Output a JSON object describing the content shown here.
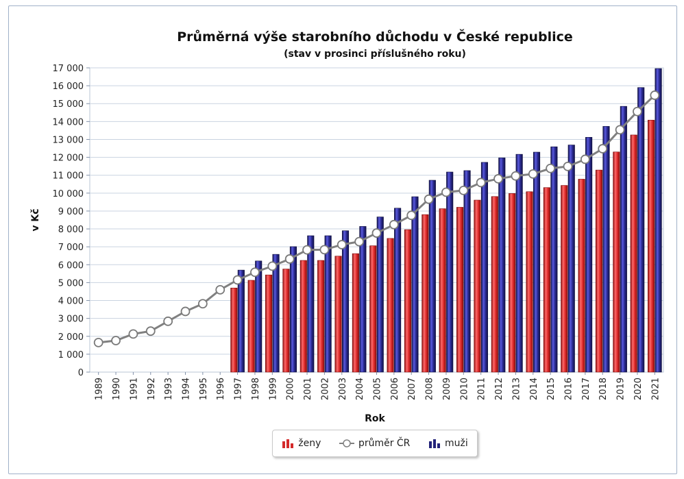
{
  "chart_data": {
    "type": "bar",
    "title": "Průměrná výše starobního důchodu v České republice",
    "subtitle": "(stav v prosinci příslušného roku)",
    "xlabel": "Rok",
    "ylabel": "v Kč",
    "ylim": [
      0,
      17000
    ],
    "ytick_step": 1000,
    "y_tick_labels": [
      "0",
      "1 000",
      "2 000",
      "3 000",
      "4 000",
      "5 000",
      "6 000",
      "7 000",
      "8 000",
      "9 000",
      "10 000",
      "11 000",
      "12 000",
      "13 000",
      "14 000",
      "15 000",
      "16 000",
      "17 000"
    ],
    "grid": true,
    "legend_position": "bottom-center",
    "categories": [
      "1989",
      "1990",
      "1991",
      "1992",
      "1993",
      "1994",
      "1995",
      "1996",
      "1997",
      "1998",
      "1999",
      "2000",
      "2001",
      "2002",
      "2003",
      "2004",
      "2005",
      "2006",
      "2007",
      "2008",
      "2009",
      "2010",
      "2011",
      "2012",
      "2013",
      "2014",
      "2015",
      "2016",
      "2017",
      "2018",
      "2019",
      "2020",
      "2021"
    ],
    "series": [
      {
        "name": "ženy",
        "kind": "bar",
        "color": "#d42a2a",
        "values": [
          null,
          null,
          null,
          null,
          null,
          null,
          null,
          null,
          4700,
          5130,
          5430,
          5760,
          6240,
          6240,
          6480,
          6620,
          7060,
          7470,
          7960,
          8800,
          9130,
          9210,
          9610,
          9810,
          9980,
          10080,
          10310,
          10430,
          10780,
          11290,
          12300,
          13250,
          14080
        ]
      },
      {
        "name": "průměr ČR",
        "kind": "line",
        "color": "#808080",
        "values": [
          1650,
          1760,
          2130,
          2290,
          2840,
          3390,
          3820,
          4600,
          5150,
          5580,
          5920,
          6320,
          6830,
          6840,
          7120,
          7290,
          7770,
          8240,
          8760,
          9660,
          10050,
          10150,
          10590,
          10800,
          10960,
          11070,
          11380,
          11490,
          11890,
          12480,
          13540,
          14560,
          15470
        ]
      },
      {
        "name": "muži",
        "kind": "bar",
        "color": "#23237a",
        "values": [
          null,
          null,
          null,
          null,
          null,
          null,
          null,
          null,
          5700,
          6210,
          6580,
          7010,
          7620,
          7620,
          7900,
          8140,
          8670,
          9160,
          9800,
          10720,
          11180,
          11260,
          11720,
          11970,
          12170,
          12290,
          12590,
          12690,
          13120,
          13730,
          14850,
          15900,
          16960
        ]
      }
    ]
  }
}
